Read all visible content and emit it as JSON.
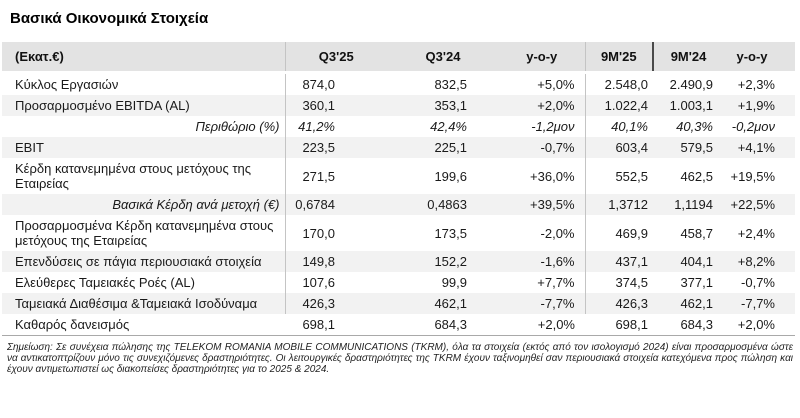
{
  "title": "Βασικά Οικονομικά Στοιχεία",
  "table": {
    "unit_header": "(Εκατ.€)",
    "columns": [
      "Q3'25",
      "Q3'24",
      "y-o-y",
      "9M'25",
      "9M'24",
      "y-o-y"
    ],
    "rows": [
      {
        "label": "Κύκλος Εργασιών",
        "style": "normal",
        "values": [
          "874,0",
          "832,5",
          "+5,0%",
          "2.548,0",
          "2.490,9",
          "+2,3%"
        ]
      },
      {
        "label": "Προσαρμοσμένο EBITDA (AL)",
        "style": "normal",
        "values": [
          "360,1",
          "353,1",
          "+2,0%",
          "1.022,4",
          "1.003,1",
          "+1,9%"
        ]
      },
      {
        "label": "Περιθώριο (%)",
        "style": "sub-italic",
        "values": [
          "41,2%",
          "42,4%",
          "-1,2μον",
          "40,1%",
          "40,3%",
          "-0,2μον"
        ]
      },
      {
        "label": "EBIT",
        "style": "normal",
        "values": [
          "223,5",
          "225,1",
          "-0,7%",
          "603,4",
          "579,5",
          "+4,1%"
        ]
      },
      {
        "label": "Κέρδη κατανεμημένα στους μετόχους της Εταιρείας",
        "style": "normal",
        "values": [
          "271,5",
          "199,6",
          "+36,0%",
          "552,5",
          "462,5",
          "+19,5%"
        ]
      },
      {
        "label": "Βασικά Κέρδη ανά μετοχή (€)",
        "style": "sub",
        "values": [
          "0,6784",
          "0,4863",
          "+39,5%",
          "1,3712",
          "1,1194",
          "+22,5%"
        ]
      },
      {
        "label": "Προσαρμοσμένα Κέρδη κατανεμημένα στους μετόχους της Εταιρείας",
        "style": "normal",
        "values": [
          "170,0",
          "173,5",
          "-2,0%",
          "469,9",
          "458,7",
          "+2,4%"
        ]
      },
      {
        "label": "Επενδύσεις σε πάγια περιουσιακά στοιχεία",
        "style": "normal",
        "values": [
          "149,8",
          "152,2",
          "-1,6%",
          "437,1",
          "404,1",
          "+8,2%"
        ]
      },
      {
        "label": "Ελεύθερες Ταμειακές Ροές (AL)",
        "style": "normal",
        "values": [
          "107,6",
          "99,9",
          "+7,7%",
          "374,5",
          "377,1",
          "-0,7%"
        ]
      },
      {
        "label": "Ταμειακά Διαθέσιμα &Ταμειακά Ισοδύναμα",
        "style": "normal",
        "values": [
          "426,3",
          "462,1",
          "-7,7%",
          "426,3",
          "462,1",
          "-7,7%"
        ]
      },
      {
        "label": "Καθαρός δανεισμός",
        "style": "normal",
        "values": [
          "698,1",
          "684,3",
          "+2,0%",
          "698,1",
          "684,3",
          "+2,0%"
        ]
      }
    ]
  },
  "footnote": "Σημείωση: Σε συνέχεια πώλησης της TELEKOM ROMANIA MOBILE COMMUNICATIONS (TKRM), όλα τα στοιχεία (εκτός από τον ισολογισμό 2024) είναι προσαρμοσμένα ώστε να αντικατοπτρίζουν μόνο τις συνεχιζόμενες δραστηριότητες. Οι λειτουργικές δραστηριότητες της TKRM έχουν ταξινομηθεί σαν περιουσιακά στοιχεία κατεχόμενα προς πώληση και έχουν αντιμετωπιστεί ως διακοπείσες δραστηριότητες για το 2025 & 2024.",
  "colors": {
    "header_bg": "#e3e3e3",
    "row_stripe_bg": "#f2f2f2",
    "divider_dark": "#4a4a4a",
    "divider_light": "#c4c4c4",
    "text": "#1a1a1a"
  }
}
